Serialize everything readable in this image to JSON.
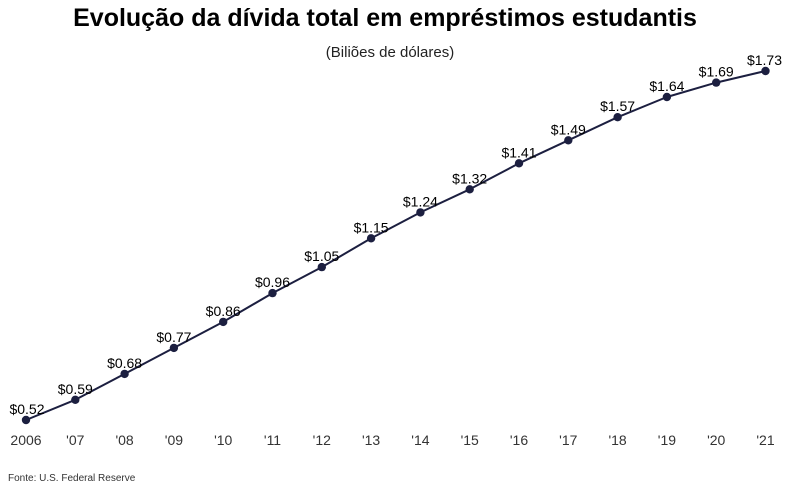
{
  "chart_data": {
    "type": "line",
    "title": "Evolução da dívida total em empréstimos estudantis",
    "subtitle": "(Biliões de dólares)",
    "x_tick_labels": [
      "2006",
      "'07",
      "'08",
      "'09",
      "'10",
      "'11",
      "'12",
      "'13",
      "'14",
      "'15",
      "'16",
      "'17",
      "'18",
      "'19",
      "'20",
      "'21"
    ],
    "x": [
      2006,
      2007,
      2008,
      2009,
      2010,
      2011,
      2012,
      2013,
      2014,
      2015,
      2016,
      2017,
      2018,
      2019,
      2020,
      2021
    ],
    "values": [
      0.52,
      0.59,
      0.68,
      0.77,
      0.86,
      0.96,
      1.05,
      1.15,
      1.24,
      1.32,
      1.41,
      1.49,
      1.57,
      1.64,
      1.69,
      1.73
    ],
    "data_labels": [
      "$0.52",
      "$0.59",
      "$0.68",
      "$0.77",
      "$0.86",
      "$0.96",
      "$1.05",
      "$1.15",
      "$1.24",
      "$1.32",
      "$1.41",
      "$1.49",
      "$1.57",
      "$1.64",
      "$1.69",
      "$1.73"
    ],
    "grid": false,
    "legend": "none",
    "line_color": "#1c1f40"
  },
  "source": "Fonte: U.S. Federal Reserve"
}
